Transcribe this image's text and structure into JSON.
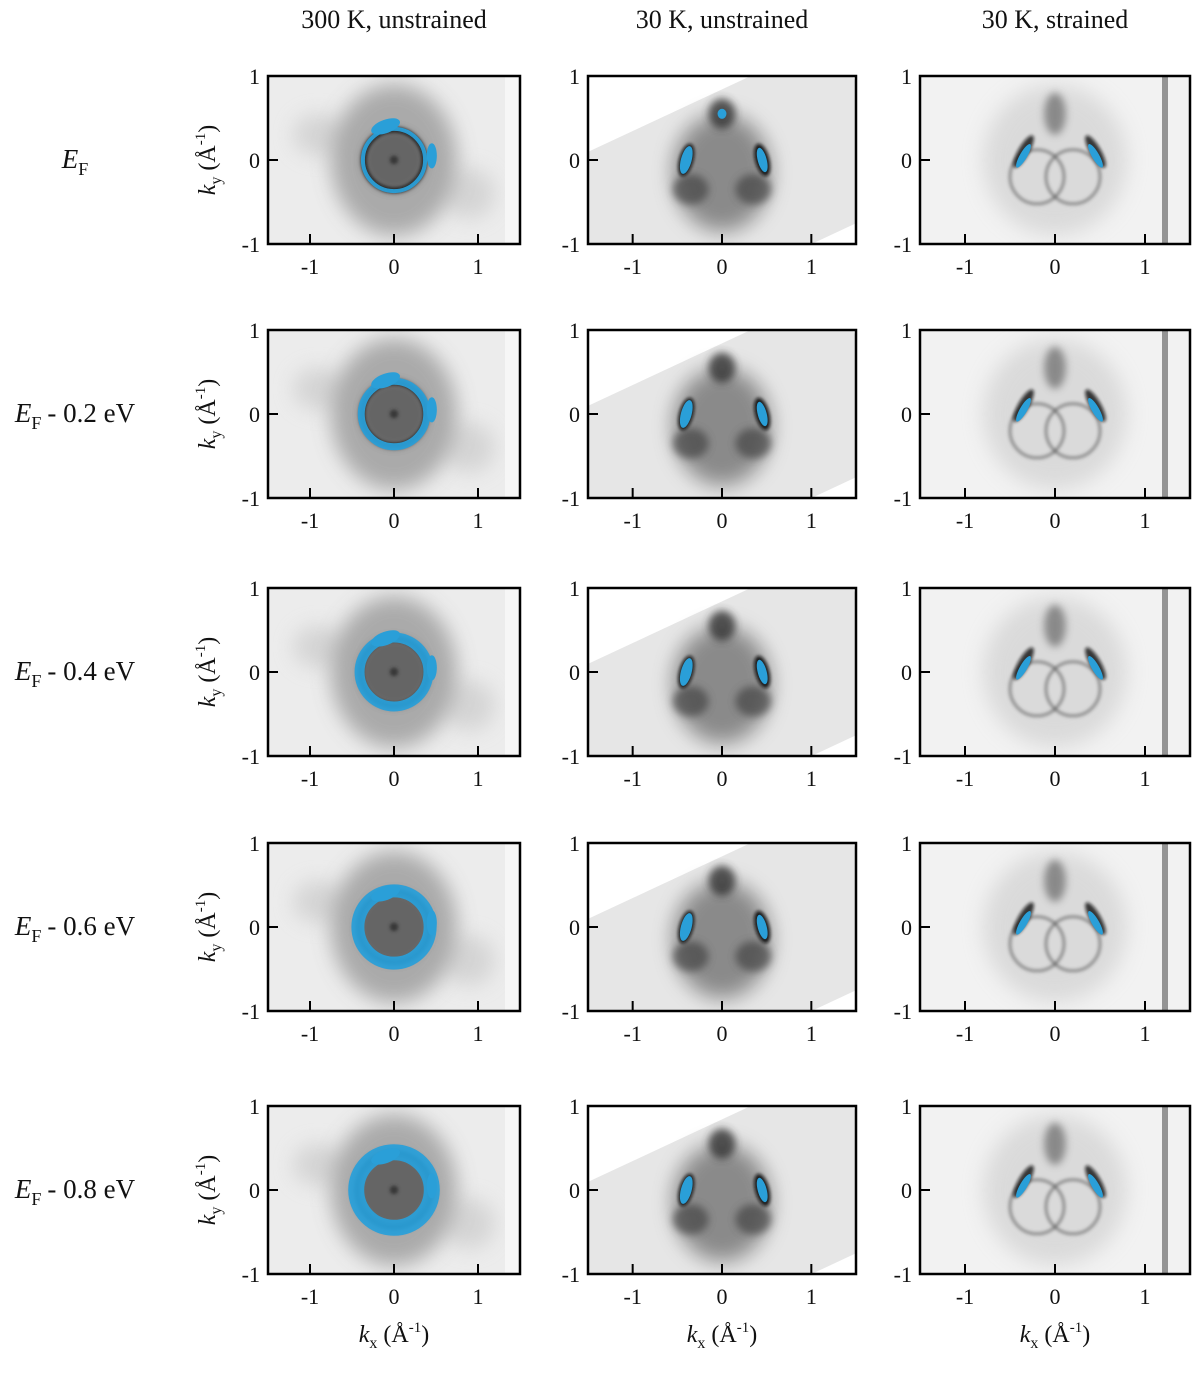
{
  "figure": {
    "columns": [
      "300 K, unstrained",
      "30 K, unstrained",
      "30 K, strained"
    ],
    "rows": [
      {
        "symbol": "E",
        "subscript": "F"
      },
      {
        "symbol": "E",
        "subscript": "F",
        "offset": "- 0.2 eV"
      },
      {
        "symbol": "E",
        "subscript": "F",
        "offset": "- 0.4 eV"
      },
      {
        "symbol": "E",
        "subscript": "F",
        "offset": "- 0.6 eV"
      },
      {
        "symbol": "E",
        "subscript": "F",
        "offset": "- 0.8 eV"
      }
    ],
    "xlim": [
      -1.5,
      1.5
    ],
    "ylim": [
      -1,
      1
    ],
    "xticks": [
      -1,
      0,
      1
    ],
    "yticks": [
      -1,
      0,
      1
    ],
    "x_label": {
      "symbol": "k",
      "subscript": "x",
      "unit": "(Å",
      "exponent": "-1",
      "close": ")"
    },
    "y_label": {
      "symbol": "k",
      "subscript": "y",
      "unit": "(Å",
      "exponent": "-1",
      "close": ")"
    }
  }
}
